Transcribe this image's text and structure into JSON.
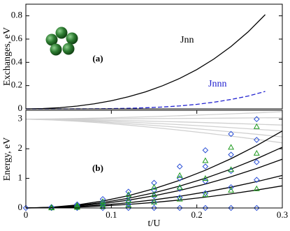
{
  "chart_data": [
    {
      "type": "line",
      "ylabel": "Exchanges, eV",
      "x": [
        0,
        0.02,
        0.04,
        0.06,
        0.08,
        0.1,
        0.12,
        0.14,
        0.16,
        0.18,
        0.2,
        0.22,
        0.24,
        0.26,
        0.28
      ],
      "xlim": [
        0,
        0.3
      ],
      "ylim": [
        0,
        0.9
      ],
      "yticks": [
        0,
        0.2,
        0.4,
        0.6,
        0.8
      ],
      "series": [
        {
          "name": "Jnn",
          "color": "#000000",
          "dashed": false,
          "values": [
            0,
            0.0026,
            0.0105,
            0.0241,
            0.0437,
            0.07,
            0.104,
            0.146,
            0.199,
            0.262,
            0.338,
            0.429,
            0.536,
            0.662,
            0.81
          ]
        },
        {
          "name": "Jnnn",
          "color": "#2323d0",
          "dashed": true,
          "values": [
            0,
            0,
            0,
            0.0003,
            0.001,
            0.0024,
            0.005,
            0.0094,
            0.016,
            0.0256,
            0.039,
            0.057,
            0.081,
            0.11,
            0.15
          ]
        }
      ],
      "annotations": [
        "(a)"
      ]
    },
    {
      "type": "line",
      "xlabel": "t/U",
      "ylabel": "Energy, eV",
      "x": [
        0,
        0.03,
        0.06,
        0.09,
        0.12,
        0.15,
        0.18,
        0.21,
        0.24,
        0.27,
        0.3
      ],
      "xlim": [
        0,
        0.3
      ],
      "ylim": [
        0,
        3.3
      ],
      "xticks": [
        0,
        0.1,
        0.2,
        0.3
      ],
      "yticks": [
        0,
        1,
        2,
        3
      ],
      "series": [
        {
          "color": "#d0d0d0",
          "values": [
            3,
            3.008,
            3.022,
            3.041,
            3.063,
            3.088,
            3.116,
            3.146,
            3.179,
            3.213,
            3.25
          ]
        },
        {
          "color": "#d0d0d0",
          "values": [
            3,
            3.002,
            3.004,
            3.008,
            3.013,
            3.018,
            3.023,
            3.029,
            3.036,
            3.043,
            3.05
          ]
        },
        {
          "color": "#d0d0d0",
          "values": [
            3,
            2.994,
            2.982,
            2.967,
            2.949,
            2.929,
            2.907,
            2.883,
            2.857,
            2.829,
            2.8
          ]
        },
        {
          "color": "#d0d0d0",
          "values": [
            3,
            2.987,
            2.964,
            2.934,
            2.899,
            2.858,
            2.814,
            2.766,
            2.714,
            2.658,
            2.6
          ]
        },
        {
          "color": "#d0d0d0",
          "values": [
            3,
            2.981,
            2.946,
            2.902,
            2.848,
            2.788,
            2.721,
            2.648,
            2.57,
            2.488,
            2.4
          ]
        },
        {
          "color": "#d0d0d0",
          "values": [
            3,
            2.975,
            2.928,
            2.869,
            2.798,
            2.717,
            2.628,
            2.531,
            2.427,
            2.317,
            2.2
          ]
        },
        {
          "color": "#000000",
          "values": [
            0,
            0.026,
            0.104,
            0.234,
            0.416,
            0.65,
            0.936,
            1.274,
            1.665,
            2.107,
            2.601
          ]
        },
        {
          "color": "#000000",
          "values": [
            0,
            0.021,
            0.082,
            0.185,
            0.328,
            0.513,
            0.739,
            1.005,
            1.313,
            1.662,
            2.052
          ]
        },
        {
          "color": "#000000",
          "values": [
            0,
            0.016,
            0.066,
            0.148,
            0.264,
            0.412,
            0.593,
            0.807,
            1.054,
            1.334,
            1.647
          ]
        },
        {
          "color": "#000000",
          "values": [
            0,
            0.011,
            0.044,
            0.099,
            0.176,
            0.275,
            0.395,
            0.538,
            0.703,
            0.889,
            1.098
          ]
        },
        {
          "color": "#000000",
          "values": [
            0,
            0.007,
            0.03,
            0.067,
            0.12,
            0.187,
            0.269,
            0.366,
            0.478,
            0.605,
            0.747
          ]
        }
      ],
      "markers": [
        {
          "marker": "diamond",
          "color": "#2a4fd6",
          "x": [
            0,
            0.03,
            0.06,
            0.09,
            0.12,
            0.15,
            0.18,
            0.21,
            0.24,
            0.27
          ],
          "values": [
            0,
            0,
            0,
            0,
            0,
            0,
            0,
            0,
            0,
            0
          ]
        },
        {
          "marker": "diamond",
          "color": "#2a4fd6",
          "x": [
            0.03,
            0.06,
            0.09,
            0.12,
            0.15,
            0.18,
            0.21,
            0.24,
            0.27
          ],
          "values": [
            0.03,
            0.12,
            0.3,
            0.55,
            0.85,
            1.4,
            1.95,
            2.5,
            3.0
          ]
        },
        {
          "marker": "diamond",
          "color": "#2a4fd6",
          "x": [
            0.03,
            0.06,
            0.09,
            0.12,
            0.15,
            0.18,
            0.21,
            0.24,
            0.27
          ],
          "values": [
            0.02,
            0.08,
            0.2,
            0.4,
            0.6,
            1.0,
            1.4,
            1.8,
            2.3
          ]
        },
        {
          "marker": "diamond",
          "color": "#2a4fd6",
          "x": [
            0.03,
            0.06,
            0.09,
            0.12,
            0.15,
            0.18,
            0.21,
            0.24,
            0.27
          ],
          "values": [
            0.01,
            0.05,
            0.12,
            0.25,
            0.4,
            0.65,
            0.9,
            1.25,
            1.55
          ]
        },
        {
          "marker": "diamond",
          "color": "#2a4fd6",
          "x": [
            0.03,
            0.06,
            0.09,
            0.12,
            0.15,
            0.18,
            0.21,
            0.24,
            0.27
          ],
          "values": [
            0.005,
            0.03,
            0.07,
            0.12,
            0.2,
            0.35,
            0.5,
            0.7,
            0.95
          ]
        },
        {
          "marker": "triangle",
          "color": "#1f9a1f",
          "x": [
            0.03,
            0.06,
            0.09,
            0.12,
            0.15,
            0.18,
            0.21,
            0.24,
            0.27
          ],
          "values": [
            0.02,
            0.09,
            0.22,
            0.45,
            0.7,
            1.1,
            1.6,
            2.05,
            2.75
          ]
        },
        {
          "marker": "triangle",
          "color": "#1f9a1f",
          "x": [
            0.03,
            0.06,
            0.09,
            0.12,
            0.15,
            0.18,
            0.21,
            0.24,
            0.27
          ],
          "values": [
            0.01,
            0.05,
            0.12,
            0.25,
            0.45,
            0.7,
            1.0,
            1.3,
            1.85
          ]
        },
        {
          "marker": "triangle",
          "color": "#1f9a1f",
          "x": [
            0.03,
            0.06,
            0.09,
            0.12,
            0.15,
            0.18,
            0.21,
            0.24,
            0.27
          ],
          "values": [
            0.005,
            0.02,
            0.05,
            0.1,
            0.2,
            0.3,
            0.45,
            0.6,
            0.65
          ]
        }
      ],
      "annotations": [
        "(b)"
      ]
    }
  ]
}
